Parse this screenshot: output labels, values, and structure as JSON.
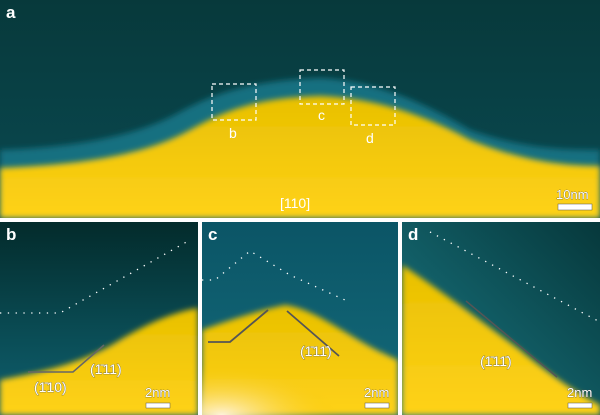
{
  "figure": {
    "panels": [
      {
        "id": "a",
        "label": "a",
        "zone_axis": "[110]",
        "scale_bar": "10nm",
        "boxes": [
          {
            "label": "b"
          },
          {
            "label": "c"
          },
          {
            "label": "d"
          }
        ]
      },
      {
        "id": "b",
        "label": "b",
        "scale_bar": "2nm",
        "planes": [
          "(1̄10)",
          "(1̄11)"
        ]
      },
      {
        "id": "c",
        "label": "c",
        "scale_bar": "2nm",
        "planes": [
          "(1̄11̄)"
        ]
      },
      {
        "id": "d",
        "label": "d",
        "scale_bar": "2nm",
        "planes": [
          "(1̄11̄)"
        ]
      }
    ],
    "colors": {
      "particle": "#f5c400",
      "support": "#0b5a6a",
      "background": "#062e30"
    }
  }
}
